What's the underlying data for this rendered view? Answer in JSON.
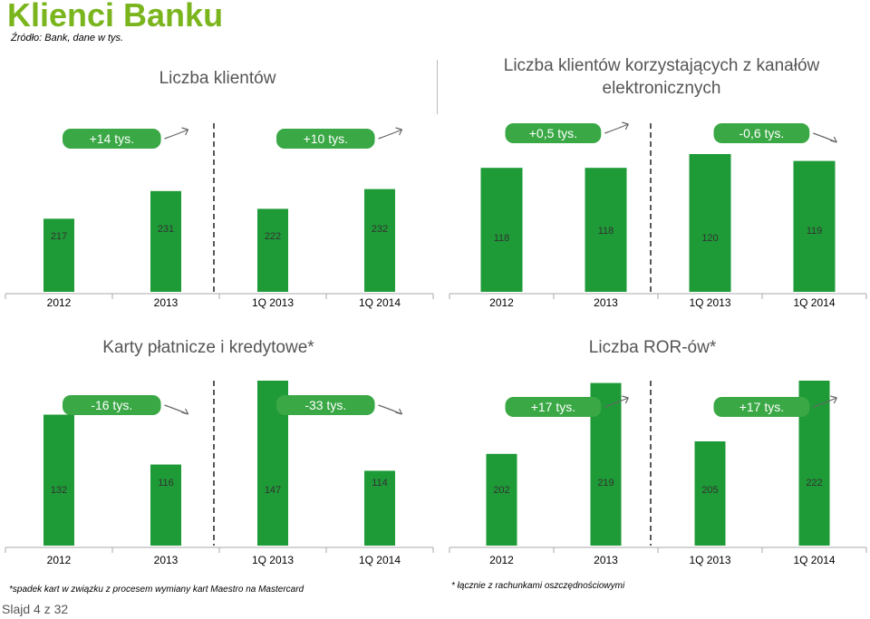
{
  "title": "Klienci Banku",
  "source": "Źródło: Bank, dane w tys.",
  "slide_label": "Slajd 4 z 32",
  "colors": {
    "bar": "#1e9a37",
    "title": "#7ab51d",
    "change_box": "#3aa845"
  },
  "footnotes": {
    "cards": "*spadek kart w związku z procesem wymiany kart Maestro na Mastercard",
    "ror": "* łącznie z rachunkami oszczędnościowymi"
  },
  "chart_data": [
    {
      "id": "klienci",
      "type": "bar",
      "title": "Liczba klientów",
      "categories": [
        "2012",
        "2013",
        "1Q 2013",
        "1Q 2014"
      ],
      "values": [
        217,
        231,
        222,
        232
      ],
      "changes": [
        "+14 tys.",
        "+10 tys."
      ]
    },
    {
      "id": "elektroniczni",
      "type": "bar",
      "title": "Liczba klientów korzystających z kanałów elektronicznych",
      "categories": [
        "2012",
        "2013",
        "1Q 2013",
        "1Q 2014"
      ],
      "values": [
        118,
        118,
        120,
        119
      ],
      "changes": [
        "+0,5 tys.",
        "-0,6 tys."
      ]
    },
    {
      "id": "karty",
      "type": "bar",
      "title": "Karty płatnicze i kredytowe*",
      "categories": [
        "2012",
        "2013",
        "1Q 2013",
        "1Q 2014"
      ],
      "values": [
        132,
        116,
        147,
        114
      ],
      "changes": [
        "-16 tys.",
        "-33 tys."
      ]
    },
    {
      "id": "ror",
      "type": "bar",
      "title": "Liczba ROR-ów*",
      "categories": [
        "2012",
        "2013",
        "1Q 2013",
        "1Q 2014"
      ],
      "values": [
        202,
        219,
        205,
        222
      ],
      "changes": [
        "+17 tys.",
        "+17 tys."
      ]
    }
  ]
}
